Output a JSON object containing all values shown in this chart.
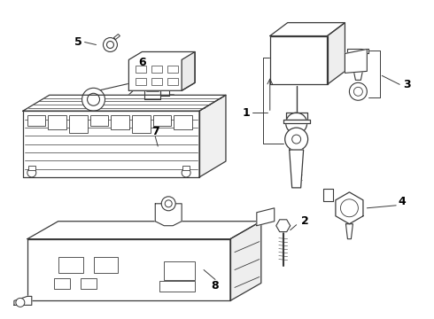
{
  "background_color": "#ffffff",
  "line_color": "#3a3a3a",
  "label_color": "#000000",
  "fig_width": 4.9,
  "fig_height": 3.6,
  "dpi": 100
}
